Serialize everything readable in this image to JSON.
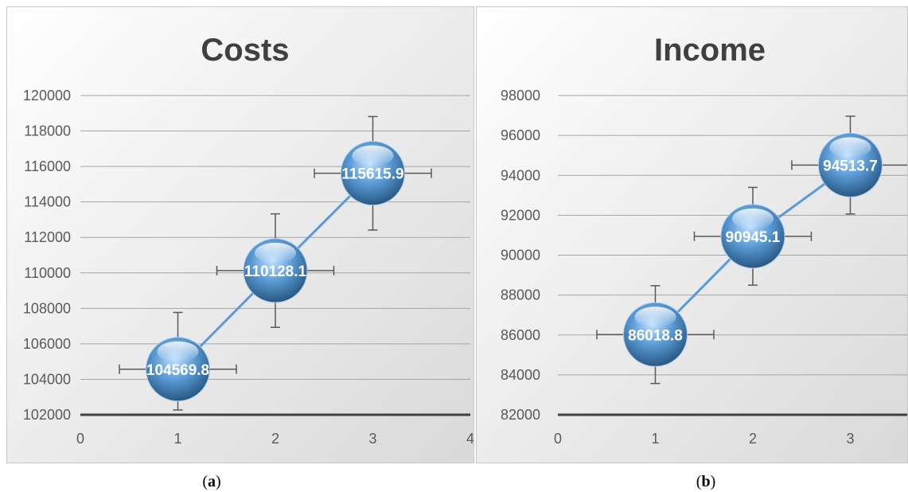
{
  "colors": {
    "bubble": "#5b9bd5",
    "line": "#5b9bd5",
    "gridline": "#a6a6a6",
    "axis": "#404040",
    "background_top": "#ffffff",
    "background_bottom": "#d9d9d9"
  },
  "captions": {
    "a": "a",
    "b": "b"
  },
  "chart_data": [
    {
      "type": "scatter",
      "title": "Costs",
      "x": [
        1,
        2,
        3
      ],
      "y": [
        104569.8,
        110128.1,
        115615.9
      ],
      "data_labels": [
        "104569.8",
        "110128.1",
        "115615.9"
      ],
      "x_error": [
        0.6,
        0.6,
        0.6
      ],
      "y_error_plus": [
        3200,
        3200,
        3200
      ],
      "y_error_minus": [
        2300,
        3200,
        3200
      ],
      "xlim": [
        0,
        4
      ],
      "ylim": [
        102000,
        120000
      ],
      "x_ticks": [
        0,
        1,
        2,
        3,
        4
      ],
      "y_ticks": [
        102000,
        104000,
        106000,
        108000,
        110000,
        112000,
        114000,
        116000,
        118000,
        120000
      ],
      "grid": true,
      "legend": "none"
    },
    {
      "type": "scatter",
      "title": "Income",
      "x": [
        1,
        2,
        3
      ],
      "y": [
        86018.8,
        90945.1,
        94513.7
      ],
      "data_labels": [
        "86018.8",
        "90945.1",
        "94513.7"
      ],
      "x_error": [
        0.6,
        0.6,
        0.6
      ],
      "y_error_plus": [
        2450,
        2450,
        2450
      ],
      "y_error_minus": [
        2450,
        2450,
        2450
      ],
      "xlim": [
        0,
        4
      ],
      "ylim": [
        82000,
        98000
      ],
      "x_ticks": [
        0,
        1,
        2,
        3
      ],
      "y_ticks": [
        82000,
        84000,
        86000,
        88000,
        90000,
        92000,
        94000,
        96000,
        98000
      ],
      "grid": true,
      "legend": "none"
    }
  ]
}
